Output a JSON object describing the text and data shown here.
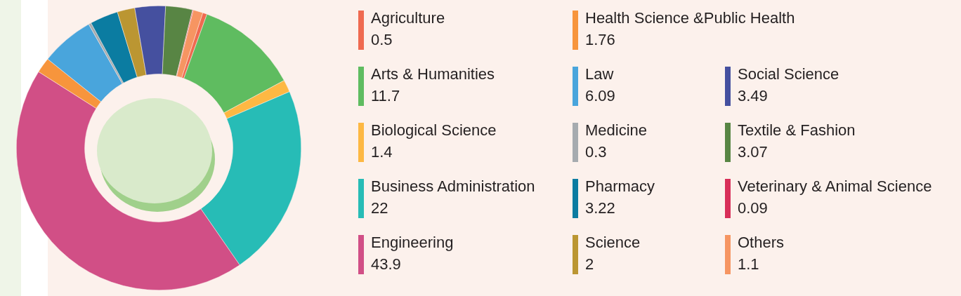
{
  "chart_data": {
    "type": "donut",
    "categories": [
      "Agriculture",
      "Arts & Humanities",
      "Biological Science",
      "Business Administration",
      "Engineering",
      "Health Science &Public Health",
      "Law",
      "Medicine",
      "Pharmacy",
      "Science",
      "Social Science",
      "Textile & Fashion",
      "Veterinary & Animal Science",
      "Others"
    ],
    "values": [
      0.5,
      11.7,
      1.4,
      22,
      43.9,
      1.76,
      6.09,
      0.3,
      3.22,
      2,
      3.49,
      3.07,
      0.09,
      1.1
    ],
    "colors": [
      "#ef6a50",
      "#5fbc60",
      "#fdb843",
      "#27bcb6",
      "#d14f86",
      "#f7953c",
      "#49a5dc",
      "#a6abaf",
      "#0b7ca1",
      "#bb9632",
      "#45509f",
      "#588544",
      "#d82f59",
      "#f69562"
    ],
    "legend": "right",
    "data_labels": true
  }
}
